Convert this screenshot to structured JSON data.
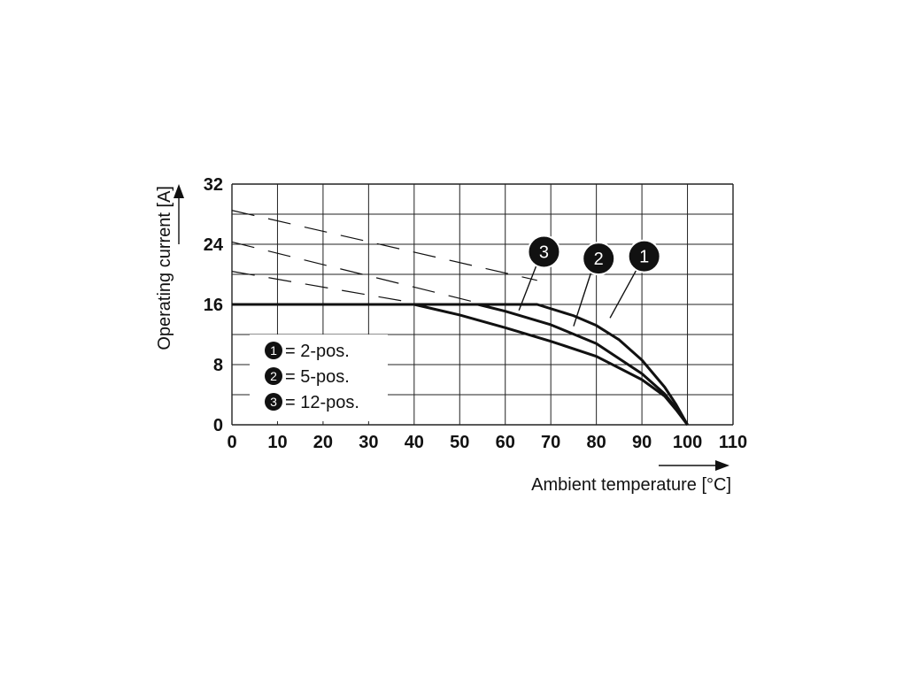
{
  "chart_data": {
    "type": "line",
    "xlabel": "Ambient temperature [°C]",
    "ylabel": "Operating current [A]",
    "xlim": [
      0,
      110
    ],
    "ylim": [
      0,
      32
    ],
    "x_ticks": [
      "0",
      "10",
      "20",
      "30",
      "40",
      "50",
      "60",
      "70",
      "80",
      "90",
      "100",
      "110"
    ],
    "y_ticks": [
      "0",
      "8",
      "16",
      "24",
      "32"
    ],
    "grid": true,
    "legend_placement": "bottom-left",
    "series": [
      {
        "marker": "1",
        "name": "= 2-pos.",
        "x": [
          0,
          67,
          75,
          80,
          85,
          90,
          95,
          97.5,
          100
        ],
        "y": [
          16,
          16,
          14.5,
          13.2,
          11.3,
          8.6,
          5.0,
          2.7,
          0
        ],
        "dashed_x": [
          0,
          67
        ],
        "dashed_y": [
          28.5,
          19.2
        ]
      },
      {
        "marker": "2",
        "name": "= 5-pos.",
        "x": [
          0,
          54,
          60,
          70,
          80,
          90,
          95,
          97.5,
          100
        ],
        "y": [
          16,
          16,
          15.1,
          13.3,
          10.8,
          6.8,
          4.1,
          2.2,
          0
        ],
        "dashed_x": [
          0,
          54
        ],
        "dashed_y": [
          24.3,
          16.2
        ]
      },
      {
        "marker": "3",
        "name": "= 12-pos.",
        "x": [
          0,
          40,
          50,
          60,
          70,
          80,
          90,
          95,
          97.5,
          100
        ],
        "y": [
          16,
          16,
          14.6,
          12.9,
          11.1,
          9.1,
          6.0,
          3.8,
          2.0,
          0
        ],
        "dashed_x": [
          0,
          40
        ],
        "dashed_y": [
          20.4,
          16.2
        ]
      }
    ]
  }
}
